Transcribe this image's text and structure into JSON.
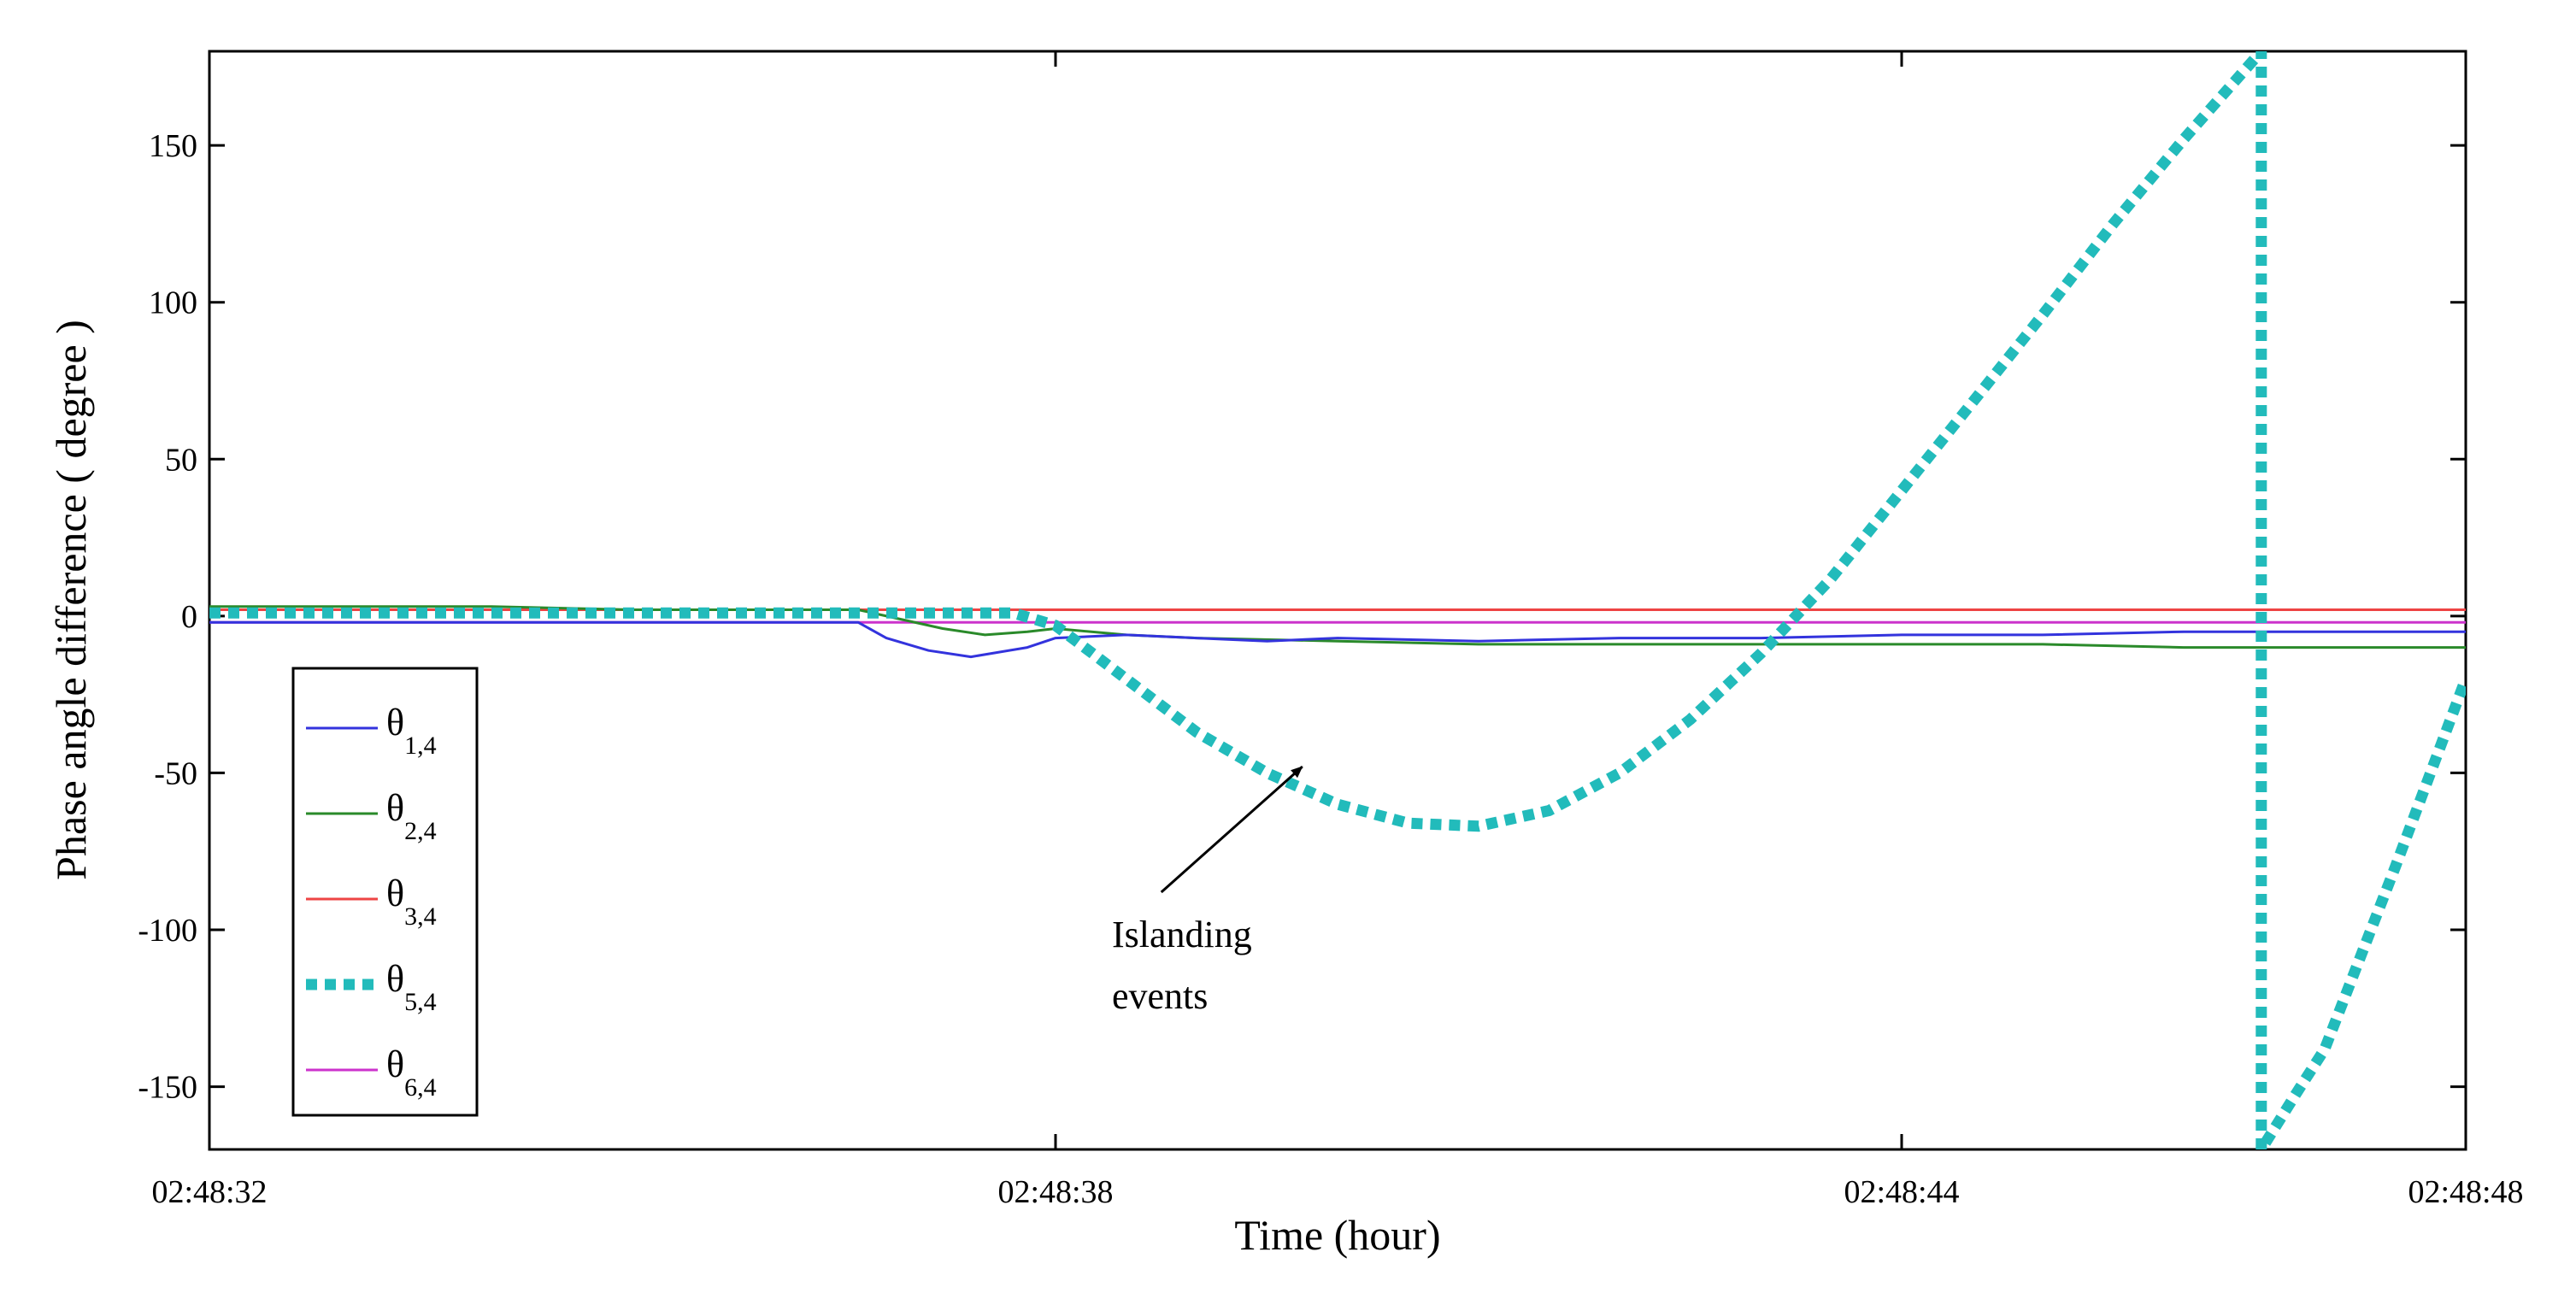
{
  "chart_data": {
    "type": "line",
    "title": "",
    "xlabel": "Time (hour)",
    "ylabel": "Phase angle difference ( degree )",
    "x_unit": "seconds since 02:48:32",
    "xlim": [
      0,
      16
    ],
    "ylim": [
      -170,
      180
    ],
    "xticks": [
      0,
      6,
      12,
      16
    ],
    "xtick_labels": [
      "02:48:32",
      "02:48:38",
      "02:48:44",
      "02:48:48"
    ],
    "yticks": [
      150,
      100,
      50,
      0,
      -50,
      -100,
      -150
    ],
    "ytick_labels": [
      "150",
      "100",
      "50",
      "0",
      "-50",
      "-100",
      "-150"
    ],
    "grid": false,
    "legend_position": "lower-left",
    "series": [
      {
        "name": "θ1,4",
        "symbol": "θ",
        "subscript": "1,4",
        "color": "#3333dd",
        "style": "solid",
        "x": [
          0,
          2,
          4.6,
          4.8,
          5.1,
          5.4,
          5.8,
          6,
          6.5,
          7,
          7.5,
          8,
          9,
          10,
          11,
          12,
          13,
          14,
          15,
          16
        ],
        "y": [
          -2,
          -2,
          -2,
          -7,
          -11,
          -13,
          -10,
          -7,
          -6,
          -7,
          -8,
          -7,
          -8,
          -7,
          -7,
          -6,
          -6,
          -5,
          -5,
          -5
        ]
      },
      {
        "name": "θ2,4",
        "symbol": "θ",
        "subscript": "2,4",
        "color": "#2a8a2a",
        "style": "solid",
        "x": [
          0,
          1,
          2,
          3,
          4,
          4.6,
          4.9,
          5.2,
          5.5,
          5.8,
          6,
          6.5,
          7,
          8,
          9,
          10,
          11,
          12,
          13,
          14,
          15,
          16
        ],
        "y": [
          3,
          3,
          3,
          2,
          2,
          2,
          -1,
          -4,
          -6,
          -5,
          -4,
          -6,
          -7,
          -8,
          -9,
          -9,
          -9,
          -9,
          -9,
          -10,
          -10,
          -10
        ]
      },
      {
        "name": "θ3,4",
        "symbol": "θ",
        "subscript": "3,4",
        "color": "#ee4444",
        "style": "solid",
        "x": [
          0,
          2,
          4,
          6,
          8,
          10,
          12,
          14,
          16
        ],
        "y": [
          2,
          2,
          2,
          2,
          2,
          2,
          2,
          2,
          2
        ]
      },
      {
        "name": "θ5,4",
        "symbol": "θ",
        "subscript": "5,4",
        "color": "#22bbbb",
        "style": "dotted-thick",
        "x": [
          0,
          2,
          4,
          5,
          5.7,
          6,
          6.5,
          7,
          7.5,
          8,
          8.5,
          9,
          9.5,
          10,
          10.5,
          11,
          11.5,
          12,
          12.5,
          13,
          13.5,
          14,
          14.55,
          14.55,
          14.8,
          15,
          15.5,
          16
        ],
        "y": [
          1,
          1,
          1,
          1,
          1,
          -3,
          -20,
          -37,
          -50,
          -60,
          -66,
          -67,
          -62,
          -50,
          -33,
          -12,
          12,
          40,
          68,
          96,
          125,
          152,
          180,
          -170,
          -152,
          -138,
          -80,
          -20
        ]
      },
      {
        "name": "θ6,4",
        "symbol": "θ",
        "subscript": "6,4",
        "color": "#cc33cc",
        "style": "solid",
        "x": [
          0,
          2,
          4,
          6,
          8,
          10,
          12,
          14,
          16
        ],
        "y": [
          -2,
          -2,
          -2,
          -2,
          -2,
          -2,
          -2,
          -2,
          -2
        ]
      }
    ],
    "annotations": [
      {
        "text_lines": [
          "Islanding",
          "events"
        ],
        "arrow_to": {
          "x": 7.75,
          "y": -48
        },
        "text_at": {
          "x": 6.4,
          "y": -100
        }
      }
    ]
  }
}
